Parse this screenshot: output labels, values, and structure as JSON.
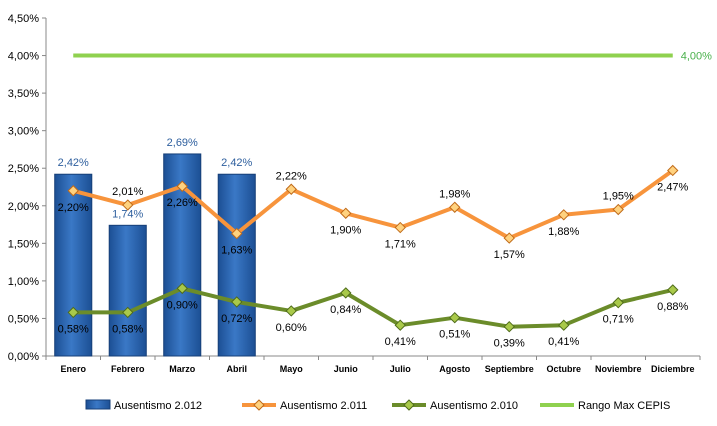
{
  "chart_data": {
    "type": "bar",
    "categories": [
      "Enero",
      "Febrero",
      "Marzo",
      "Abril",
      "Mayo",
      "Junio",
      "Julio",
      "Agosto",
      "Septiembre",
      "Octubre",
      "Noviembre",
      "Diciembre"
    ],
    "ylim": [
      0,
      4.5
    ],
    "yticks": [
      "0,00%",
      "0,50%",
      "1,00%",
      "1,50%",
      "2,00%",
      "2,50%",
      "3,00%",
      "3,50%",
      "4,00%",
      "4,50%"
    ],
    "grid": false,
    "legend_position": "bottom",
    "series": [
      {
        "name": "Ausentismo 2.012",
        "type": "bar",
        "color": "#2a62ad",
        "values": [
          2.42,
          1.74,
          2.69,
          2.42,
          null,
          null,
          null,
          null,
          null,
          null,
          null,
          null
        ],
        "labels": [
          "2,42%",
          "1,74%",
          "2,69%",
          "2,42%",
          "",
          "",
          "",
          "",
          "",
          "",
          "",
          ""
        ]
      },
      {
        "name": "Ausentismo 2.011",
        "type": "line",
        "color": "#f7943c",
        "values": [
          2.2,
          2.01,
          2.26,
          1.63,
          2.22,
          1.9,
          1.71,
          1.98,
          1.57,
          1.88,
          1.95,
          2.47
        ],
        "labels": [
          "2,20%",
          "2,01%",
          "2,26%",
          "1,63%",
          "2,22%",
          "1,90%",
          "1,71%",
          "1,98%",
          "1,57%",
          "1,88%",
          "1,95%",
          "2,47%"
        ]
      },
      {
        "name": "Ausentismo 2.010",
        "type": "line",
        "color": "#6b8c2a",
        "values": [
          0.58,
          0.58,
          0.9,
          0.72,
          0.6,
          0.84,
          0.41,
          0.51,
          0.39,
          0.41,
          0.71,
          0.88
        ],
        "labels": [
          "0,58%",
          "0,58%",
          "0,90%",
          "0,72%",
          "0,60%",
          "0,84%",
          "0,41%",
          "0,51%",
          "0,39%",
          "0,41%",
          "0,71%",
          "0,88%"
        ]
      },
      {
        "name": "Rango Max CEPIS",
        "type": "line",
        "color": "#8fd14f",
        "values": [
          4.0,
          4.0,
          4.0,
          4.0,
          4.0,
          4.0,
          4.0,
          4.0,
          4.0,
          4.0,
          4.0,
          4.0
        ],
        "labels": [
          "",
          "",
          "",
          "",
          "",
          "",
          "",
          "",
          "",
          "",
          "",
          "4,00%"
        ]
      }
    ]
  }
}
